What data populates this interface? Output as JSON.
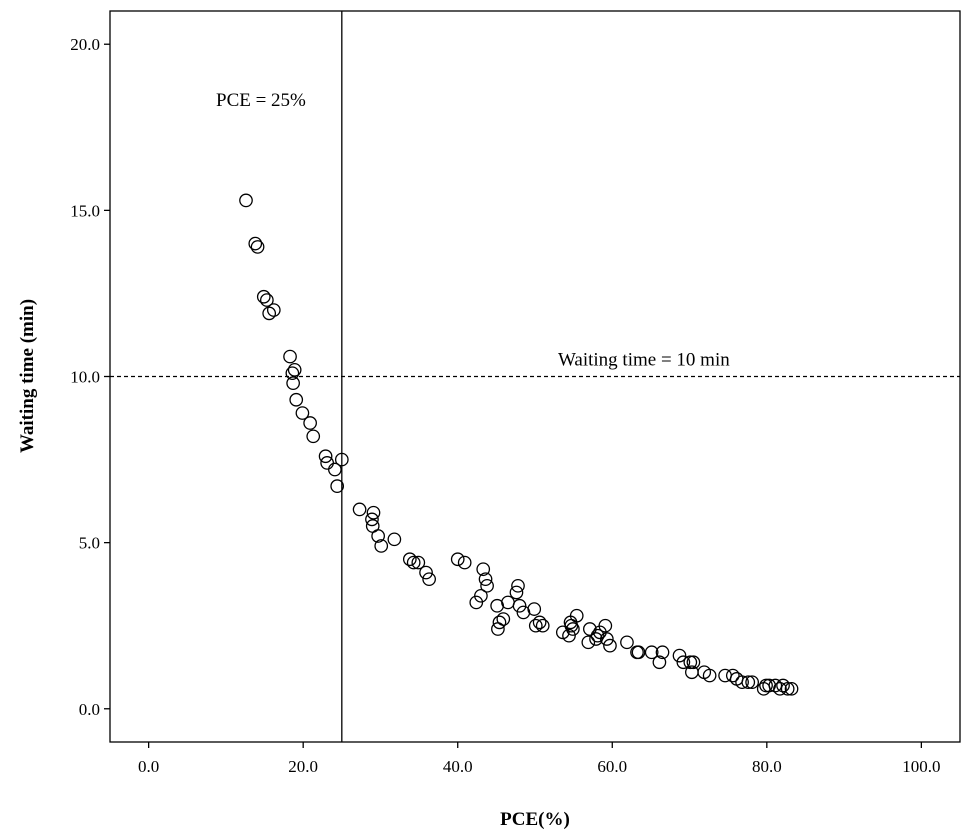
{
  "chart_data": {
    "type": "scatter",
    "title": "",
    "xlabel": "PCE(%)",
    "ylabel": "Waiting time (min)",
    "xlim": [
      -5,
      105
    ],
    "ylim": [
      -1,
      21
    ],
    "xticks": [
      0,
      20,
      40,
      60,
      80,
      100
    ],
    "yticks": [
      0,
      5,
      10,
      15,
      20
    ],
    "xtick_labels": [
      "0.0",
      "20.0",
      "40.0",
      "60.0",
      "80.0",
      "100.0"
    ],
    "ytick_labels": [
      "0.0",
      "5.0",
      "10.0",
      "15.0",
      "20.0"
    ],
    "grid": false,
    "marker": "open-circle",
    "colors": {
      "marker": "#000000",
      "axis": "#000000",
      "background": "#ffffff"
    },
    "reference_lines": [
      {
        "orientation": "vertical",
        "value": 25,
        "style": "solid",
        "label": "PCE = 25%"
      },
      {
        "orientation": "horizontal",
        "value": 10,
        "style": "dashed",
        "label": "Waiting time = 10 min"
      }
    ],
    "points": [
      [
        12.6,
        15.3
      ],
      [
        13.8,
        14.0
      ],
      [
        14.1,
        13.9
      ],
      [
        14.9,
        12.4
      ],
      [
        15.3,
        12.3
      ],
      [
        15.6,
        11.9
      ],
      [
        16.2,
        12.0
      ],
      [
        18.3,
        10.6
      ],
      [
        18.6,
        10.1
      ],
      [
        18.9,
        10.2
      ],
      [
        18.7,
        9.8
      ],
      [
        19.1,
        9.3
      ],
      [
        19.9,
        8.9
      ],
      [
        20.9,
        8.6
      ],
      [
        21.3,
        8.2
      ],
      [
        22.9,
        7.6
      ],
      [
        23.1,
        7.4
      ],
      [
        24.1,
        7.2
      ],
      [
        24.4,
        6.7
      ],
      [
        25.0,
        7.5
      ],
      [
        27.3,
        6.0
      ],
      [
        29.1,
        5.9
      ],
      [
        28.9,
        5.7
      ],
      [
        29.0,
        5.5
      ],
      [
        29.7,
        5.2
      ],
      [
        30.1,
        4.9
      ],
      [
        31.8,
        5.1
      ],
      [
        33.8,
        4.5
      ],
      [
        34.3,
        4.4
      ],
      [
        34.9,
        4.4
      ],
      [
        35.9,
        4.1
      ],
      [
        36.3,
        3.9
      ],
      [
        40.0,
        4.5
      ],
      [
        40.9,
        4.4
      ],
      [
        42.4,
        3.2
      ],
      [
        43.0,
        3.4
      ],
      [
        43.3,
        4.2
      ],
      [
        43.6,
        3.9
      ],
      [
        43.8,
        3.7
      ],
      [
        45.1,
        3.1
      ],
      [
        45.2,
        2.4
      ],
      [
        45.4,
        2.6
      ],
      [
        45.9,
        2.7
      ],
      [
        46.5,
        3.2
      ],
      [
        47.6,
        3.5
      ],
      [
        47.8,
        3.7
      ],
      [
        48.0,
        3.1
      ],
      [
        48.5,
        2.9
      ],
      [
        49.9,
        3.0
      ],
      [
        50.1,
        2.5
      ],
      [
        50.6,
        2.6
      ],
      [
        51.0,
        2.5
      ],
      [
        53.6,
        2.3
      ],
      [
        54.4,
        2.2
      ],
      [
        54.6,
        2.6
      ],
      [
        54.7,
        2.5
      ],
      [
        54.9,
        2.4
      ],
      [
        55.4,
        2.8
      ],
      [
        56.9,
        2.0
      ],
      [
        57.1,
        2.4
      ],
      [
        57.9,
        2.1
      ],
      [
        58.1,
        2.2
      ],
      [
        58.4,
        2.3
      ],
      [
        59.1,
        2.5
      ],
      [
        59.3,
        2.1
      ],
      [
        59.7,
        1.9
      ],
      [
        61.9,
        2.0
      ],
      [
        63.2,
        1.7
      ],
      [
        63.4,
        1.7
      ],
      [
        65.1,
        1.7
      ],
      [
        66.1,
        1.4
      ],
      [
        66.5,
        1.7
      ],
      [
        68.7,
        1.6
      ],
      [
        69.2,
        1.4
      ],
      [
        70.1,
        1.4
      ],
      [
        70.3,
        1.1
      ],
      [
        70.5,
        1.4
      ],
      [
        71.9,
        1.1
      ],
      [
        72.6,
        1.0
      ],
      [
        74.6,
        1.0
      ],
      [
        75.6,
        1.0
      ],
      [
        76.1,
        0.9
      ],
      [
        76.8,
        0.8
      ],
      [
        77.6,
        0.8
      ],
      [
        78.1,
        0.8
      ],
      [
        79.6,
        0.6
      ],
      [
        79.9,
        0.7
      ],
      [
        80.3,
        0.7
      ],
      [
        81.1,
        0.7
      ],
      [
        81.7,
        0.6
      ],
      [
        82.1,
        0.7
      ],
      [
        82.7,
        0.6
      ],
      [
        83.2,
        0.6
      ]
    ]
  }
}
